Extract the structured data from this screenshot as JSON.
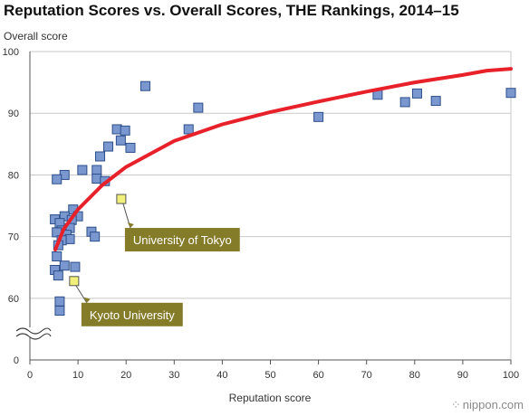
{
  "brand": "nippon.com",
  "chart_data": {
    "type": "scatter",
    "title": "Reputation Scores vs. Overall Scores, THE Rankings, 2014–15",
    "xlabel": "Reputation score",
    "ylabel": "Overall score",
    "xlim": [
      0,
      100
    ],
    "ylim": [
      0,
      100
    ],
    "axis_break": true,
    "x_ticks": [
      "0",
      "10",
      "20",
      "30",
      "40",
      "50",
      "60",
      "70",
      "80",
      "90",
      "100"
    ],
    "y_ticks": [
      "0",
      "60",
      "70",
      "80",
      "90",
      "100"
    ],
    "grid": true,
    "colors": {
      "points": "#7a97cf",
      "point_stroke": "#2c4e8a",
      "highlight": "#f0f07a",
      "trend": "#e8202a",
      "callout": "#857c2a",
      "grid": "#c9c9c9"
    },
    "points": [
      {
        "x": 24,
        "y": 94.4
      },
      {
        "x": 35,
        "y": 90.9
      },
      {
        "x": 33,
        "y": 87.4
      },
      {
        "x": 60,
        "y": 89.4
      },
      {
        "x": 72.3,
        "y": 93.0
      },
      {
        "x": 78,
        "y": 91.8
      },
      {
        "x": 80.5,
        "y": 93.2
      },
      {
        "x": 84.4,
        "y": 92.0
      },
      {
        "x": 100,
        "y": 93.3
      },
      {
        "x": 18.1,
        "y": 87.4
      },
      {
        "x": 19.8,
        "y": 87.2
      },
      {
        "x": 18.9,
        "y": 85.6
      },
      {
        "x": 16.3,
        "y": 84.6
      },
      {
        "x": 20.9,
        "y": 84.4
      },
      {
        "x": 14.6,
        "y": 83.0
      },
      {
        "x": 10.9,
        "y": 80.8
      },
      {
        "x": 13.9,
        "y": 80.8
      },
      {
        "x": 7.2,
        "y": 80.0
      },
      {
        "x": 5.6,
        "y": 79.3
      },
      {
        "x": 13.9,
        "y": 79.4
      },
      {
        "x": 15.6,
        "y": 79.0
      },
      {
        "x": 9.0,
        "y": 74.4
      },
      {
        "x": 7.2,
        "y": 73.3
      },
      {
        "x": 10.0,
        "y": 73.3
      },
      {
        "x": 5.2,
        "y": 72.8
      },
      {
        "x": 8.7,
        "y": 72.7
      },
      {
        "x": 6.2,
        "y": 72.2
      },
      {
        "x": 8.3,
        "y": 71.4
      },
      {
        "x": 6.6,
        "y": 71.0
      },
      {
        "x": 5.6,
        "y": 70.7
      },
      {
        "x": 12.8,
        "y": 70.8
      },
      {
        "x": 7.6,
        "y": 70.3
      },
      {
        "x": 13.5,
        "y": 70.0
      },
      {
        "x": 8.3,
        "y": 69.6
      },
      {
        "x": 6.6,
        "y": 69.4
      },
      {
        "x": 5.9,
        "y": 68.6
      },
      {
        "x": 5.6,
        "y": 66.8
      },
      {
        "x": 7.2,
        "y": 65.3
      },
      {
        "x": 9.4,
        "y": 65.1
      },
      {
        "x": 5.2,
        "y": 64.6
      },
      {
        "x": 5.9,
        "y": 63.7
      },
      {
        "x": 6.2,
        "y": 59.5
      },
      {
        "x": 6.2,
        "y": 58.0
      }
    ],
    "highlights": [
      {
        "name": "University of Tokyo",
        "x": 19.0,
        "y": 76.1
      },
      {
        "name": "Kyoto University",
        "x": 9.2,
        "y": 62.8
      }
    ],
    "trend": [
      [
        5.3,
        67.9
      ],
      [
        7,
        71.2
      ],
      [
        10,
        74.4
      ],
      [
        15,
        78.3
      ],
      [
        20,
        81.3
      ],
      [
        30,
        85.5
      ],
      [
        40,
        88.2
      ],
      [
        50,
        90.2
      ],
      [
        60,
        91.9
      ],
      [
        70,
        93.5
      ],
      [
        80,
        95.0
      ],
      [
        90,
        96.2
      ],
      [
        95,
        96.9
      ],
      [
        100,
        97.2
      ]
    ]
  }
}
